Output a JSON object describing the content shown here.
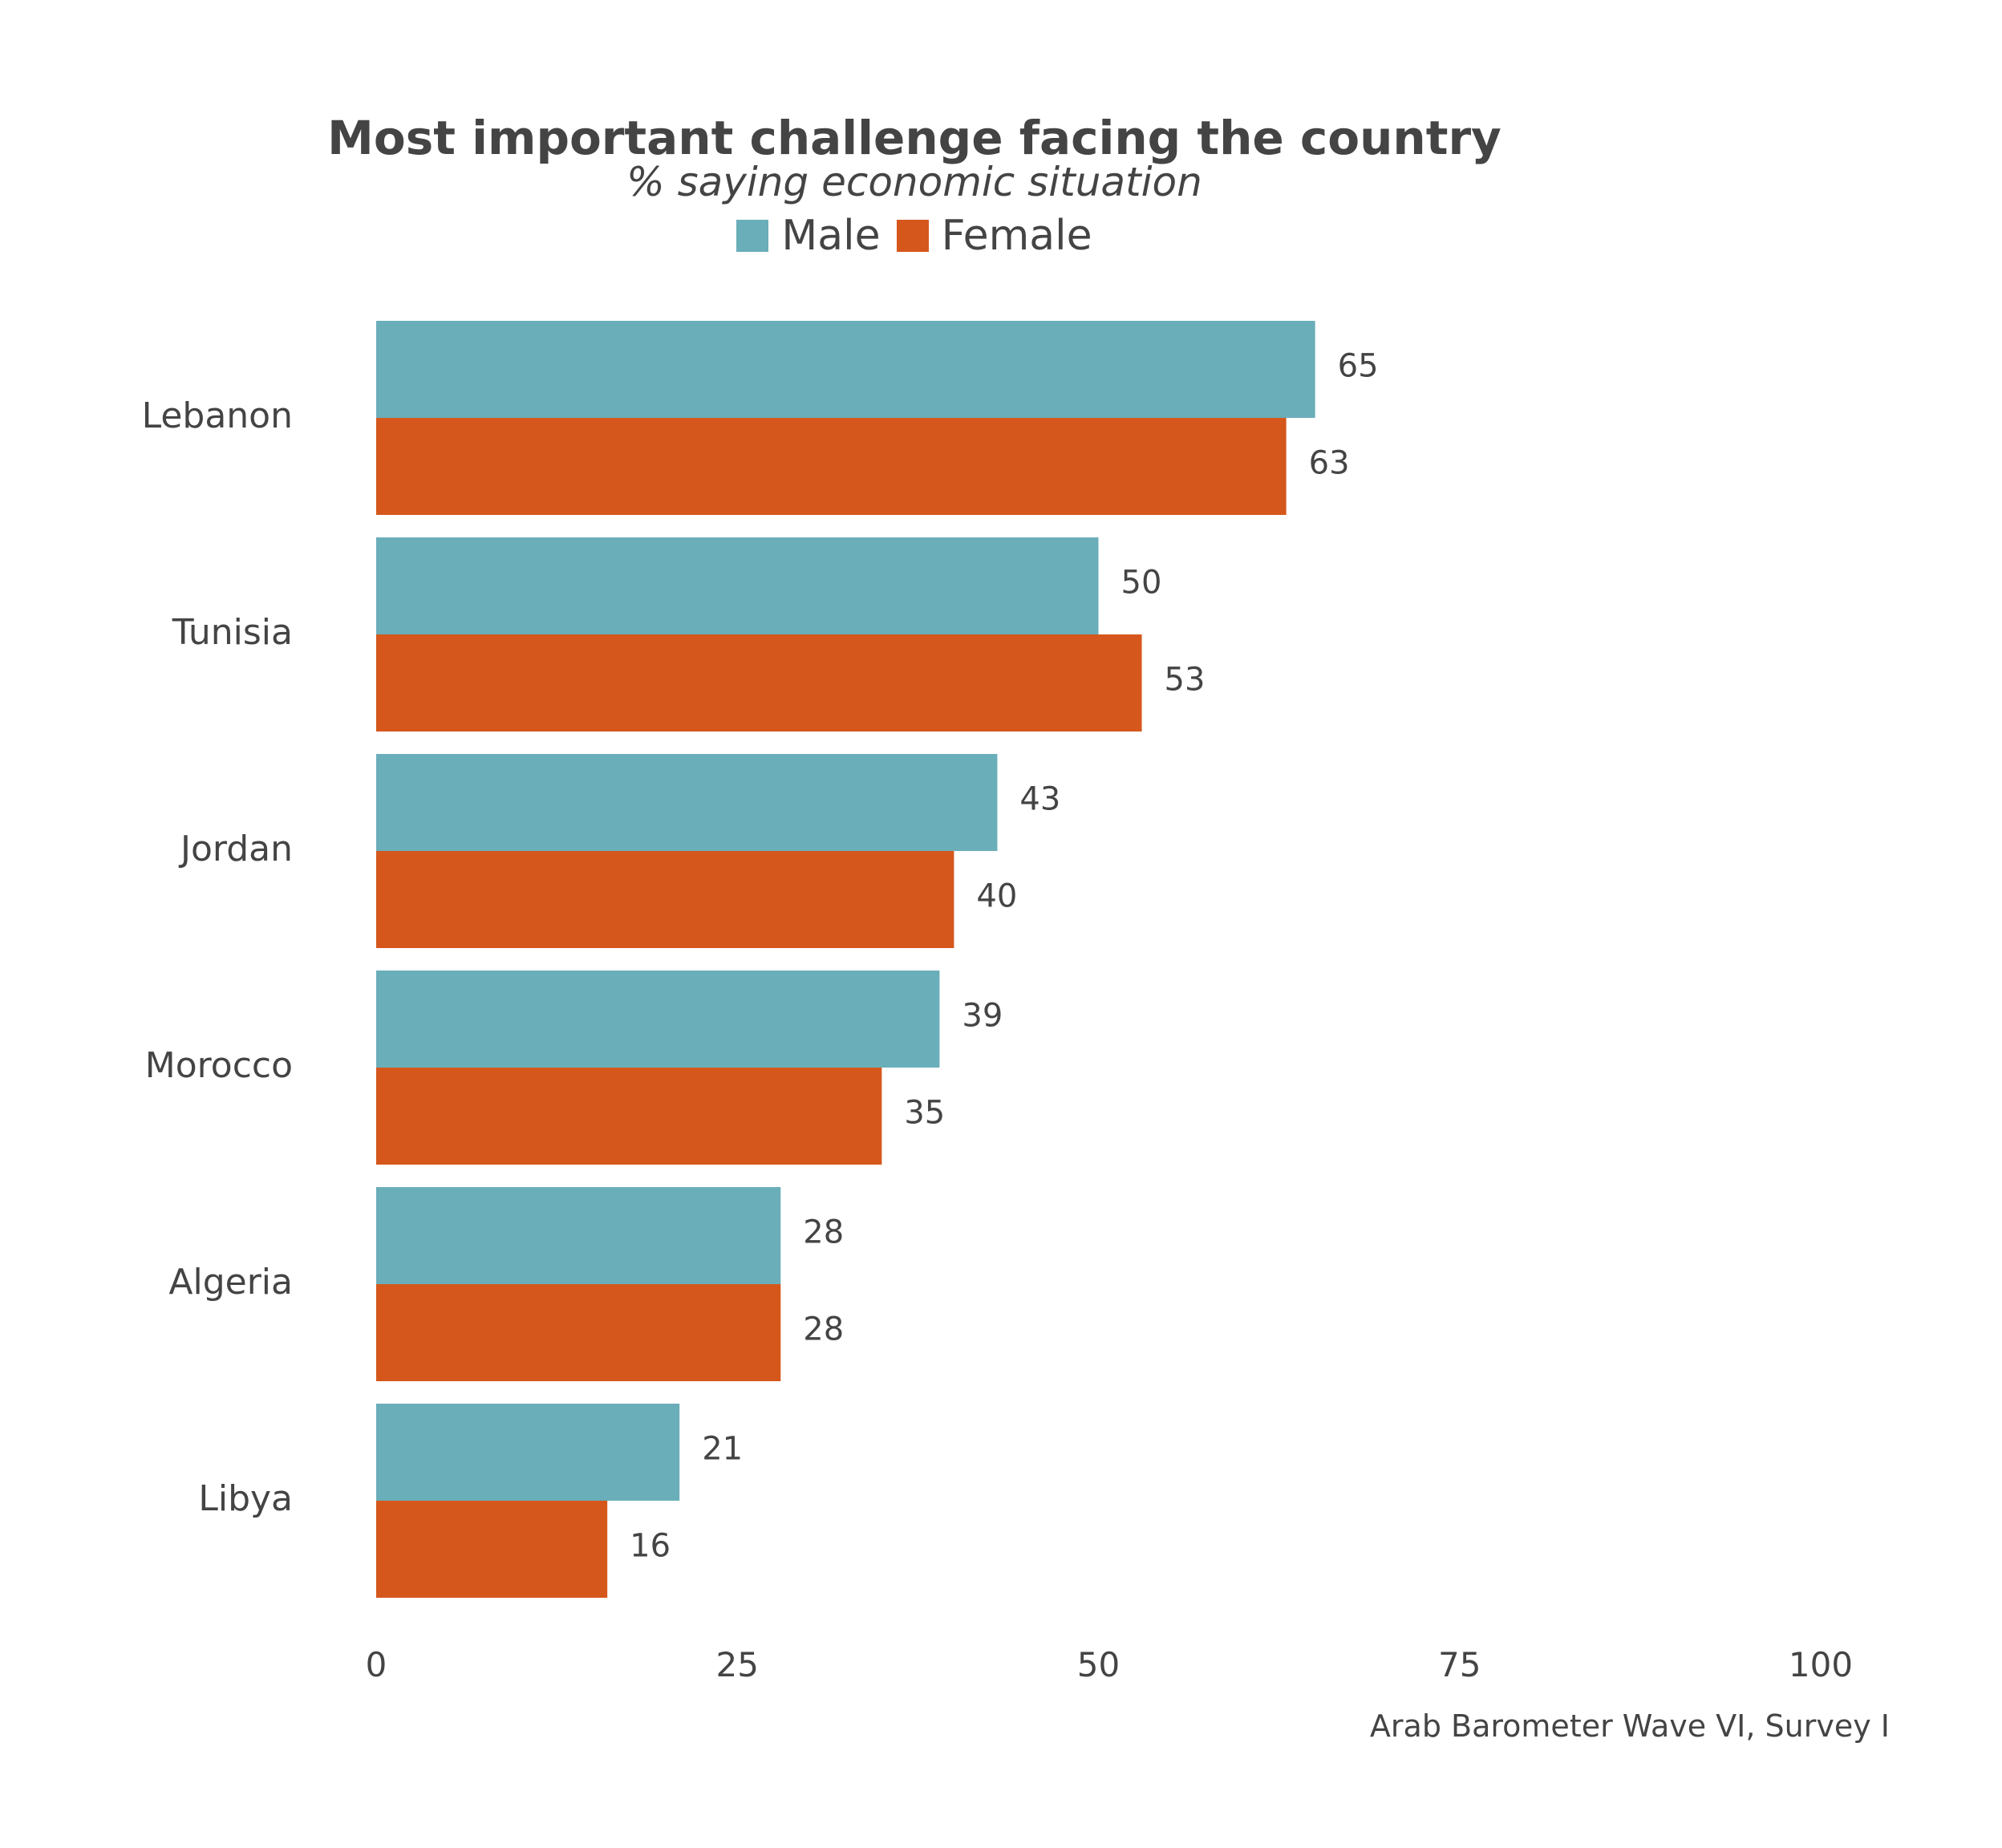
{
  "chart_data": {
    "type": "bar",
    "orientation": "horizontal",
    "title": "Most important challenge facing the country",
    "subtitle": "% saying economic situation",
    "caption": "Arab Barometer Wave VI, Survey I",
    "categories": [
      "Lebanon",
      "Tunisia",
      "Jordan",
      "Morocco",
      "Algeria",
      "Libya"
    ],
    "series": [
      {
        "name": "Male",
        "color": "#6AAEB9",
        "values": [
          65,
          50,
          43,
          39,
          28,
          21
        ]
      },
      {
        "name": "Female",
        "color": "#D5571C",
        "values": [
          63,
          53,
          40,
          35,
          28,
          16
        ]
      }
    ],
    "x_ticks": [
      0,
      25,
      50,
      75,
      100
    ],
    "xlim": [
      0,
      100
    ],
    "xlabel": "",
    "ylabel": "",
    "grid": false,
    "legend_position": "top"
  }
}
